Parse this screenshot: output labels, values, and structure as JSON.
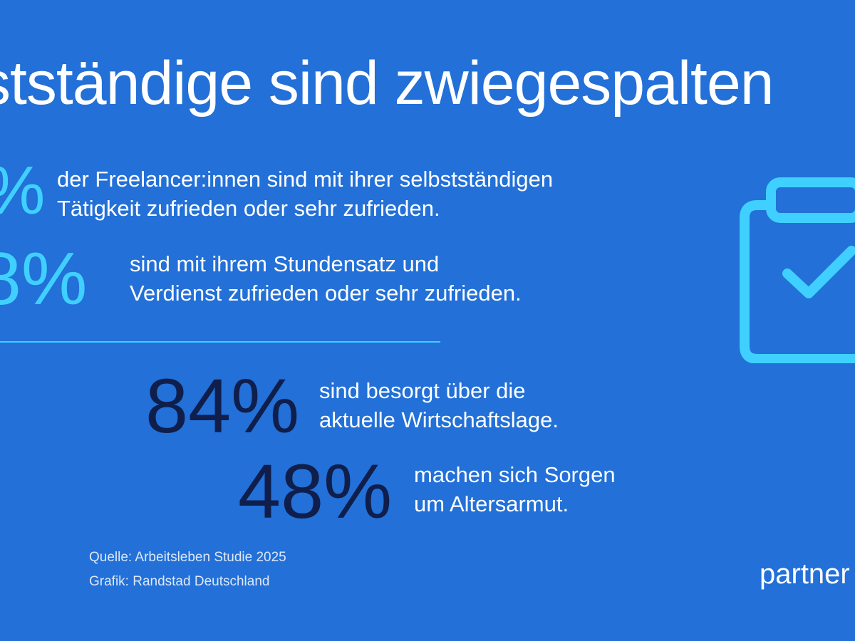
{
  "title": "stständige sind zwiegespalten",
  "stats": [
    {
      "value": "%",
      "line1": "der Freelancer:innen sind mit ihrer selbstständigen",
      "line2": "Tätigkeit zufrieden oder sehr zufrieden."
    },
    {
      "value": "8%",
      "line1": "sind mit ihrem Stundensatz und",
      "line2": "Verdienst zufrieden oder sehr zufrieden."
    },
    {
      "value": "84%",
      "line1": "sind besorgt über die",
      "line2": "aktuelle Wirtschaftslage."
    },
    {
      "value": "48%",
      "line1": "machen sich Sorgen",
      "line2": "um Altersarmut."
    }
  ],
  "source": {
    "line1": "Quelle: Arbeitsleben Studie 2025",
    "line2": "Grafik: Randstad Deutschland"
  },
  "logo": "partner",
  "icon": "clipboard-check-icon",
  "colors": {
    "background": "#2270D8",
    "accent": "#3FD0FF",
    "dark": "#0F1E4A"
  }
}
